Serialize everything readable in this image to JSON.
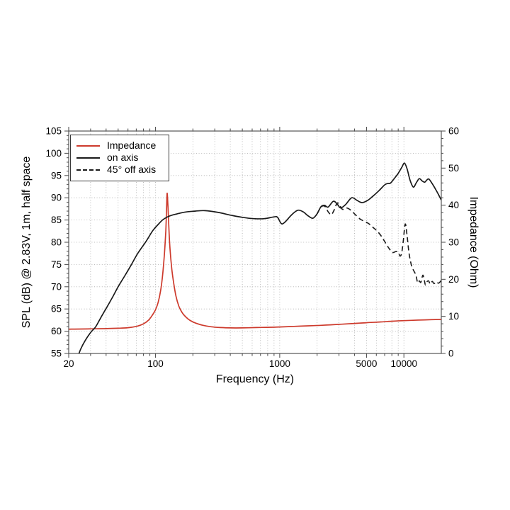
{
  "chart_data": {
    "type": "line",
    "title": "",
    "xlabel": "Frequency (Hz)",
    "ylabel_left": "SPL (dB) @ 2.83V, 1m, half space",
    "ylabel_right": "Impedance (Ohm)",
    "x_scale": "log",
    "x_range": [
      20,
      20000
    ],
    "x_ticks_labeled": [
      "20",
      "100",
      "1000",
      "5000",
      "10000"
    ],
    "x_major_ticks": [
      20,
      100,
      1000,
      5000,
      10000
    ],
    "y_left_range": [
      55,
      105
    ],
    "y_left_ticks": [
      55,
      60,
      65,
      70,
      75,
      80,
      85,
      90,
      95,
      100,
      105
    ],
    "y_left_minor_step": 1,
    "y_right_range": [
      0,
      60
    ],
    "y_right_ticks": [
      0,
      10,
      20,
      30,
      40,
      50,
      60
    ],
    "y_right_minor_step": 2,
    "grid": "dotted",
    "grid_color": "#aaaaaa",
    "frame_color": "#555555",
    "legend_position": "top-left",
    "series": [
      {
        "name": "Impedance",
        "axis": "right",
        "color": "#cd3a2c",
        "style": "solid",
        "points": [
          [
            20,
            6.55
          ],
          [
            25,
            6.6
          ],
          [
            32,
            6.65
          ],
          [
            40,
            6.7
          ],
          [
            50,
            6.8
          ],
          [
            60,
            6.95
          ],
          [
            70,
            7.3
          ],
          [
            80,
            8.0
          ],
          [
            88,
            9.0
          ],
          [
            95,
            10.5
          ],
          [
            100,
            11.8
          ],
          [
            105,
            13.8
          ],
          [
            110,
            17.0
          ],
          [
            114,
            21.0
          ],
          [
            118,
            27.0
          ],
          [
            121,
            33.0
          ],
          [
            122.5,
            38.0
          ],
          [
            124,
            43.2
          ],
          [
            126,
            39.5
          ],
          [
            128,
            34.0
          ],
          [
            131,
            28.0
          ],
          [
            135,
            23.0
          ],
          [
            140,
            19.0
          ],
          [
            146,
            15.5
          ],
          [
            154,
            12.8
          ],
          [
            164,
            11.0
          ],
          [
            176,
            9.8
          ],
          [
            190,
            8.9
          ],
          [
            210,
            8.2
          ],
          [
            240,
            7.6
          ],
          [
            280,
            7.2
          ],
          [
            330,
            7.0
          ],
          [
            400,
            6.9
          ],
          [
            500,
            6.9
          ],
          [
            650,
            7.0
          ],
          [
            800,
            7.05
          ],
          [
            1000,
            7.15
          ],
          [
            1300,
            7.3
          ],
          [
            1700,
            7.45
          ],
          [
            2200,
            7.6
          ],
          [
            3000,
            7.85
          ],
          [
            4000,
            8.1
          ],
          [
            5000,
            8.3
          ],
          [
            6500,
            8.5
          ],
          [
            8000,
            8.7
          ],
          [
            10000,
            8.85
          ],
          [
            13000,
            9.0
          ],
          [
            16000,
            9.1
          ],
          [
            20000,
            9.2
          ]
        ]
      },
      {
        "name": "on axis",
        "axis": "left",
        "color": "#1a1a1a",
        "style": "solid",
        "points": [
          [
            23.5,
            54.0
          ],
          [
            25,
            56.0
          ],
          [
            27,
            57.8
          ],
          [
            30,
            59.7
          ],
          [
            33,
            61.0
          ],
          [
            36,
            62.9
          ],
          [
            40,
            65.1
          ],
          [
            45,
            67.6
          ],
          [
            50,
            70.0
          ],
          [
            57,
            72.6
          ],
          [
            64,
            75.0
          ],
          [
            72,
            77.5
          ],
          [
            83,
            80.0
          ],
          [
            95,
            82.6
          ],
          [
            105,
            84.0
          ],
          [
            115,
            85.1
          ],
          [
            130,
            85.9
          ],
          [
            150,
            86.4
          ],
          [
            175,
            86.8
          ],
          [
            210,
            87.0
          ],
          [
            250,
            87.1
          ],
          [
            320,
            86.7
          ],
          [
            400,
            86.1
          ],
          [
            500,
            85.6
          ],
          [
            620,
            85.3
          ],
          [
            750,
            85.3
          ],
          [
            900,
            85.7
          ],
          [
            960,
            85.6
          ],
          [
            1030,
            84.2
          ],
          [
            1100,
            84.5
          ],
          [
            1250,
            86.2
          ],
          [
            1400,
            87.2
          ],
          [
            1550,
            86.8
          ],
          [
            1700,
            85.9
          ],
          [
            1850,
            85.4
          ],
          [
            2000,
            86.4
          ],
          [
            2150,
            88.0
          ],
          [
            2300,
            88.3
          ],
          [
            2450,
            87.9
          ],
          [
            2700,
            89.2
          ],
          [
            2900,
            88.6
          ],
          [
            3100,
            87.7
          ],
          [
            3400,
            88.5
          ],
          [
            3800,
            90.0
          ],
          [
            4200,
            89.4
          ],
          [
            4600,
            88.9
          ],
          [
            5100,
            89.4
          ],
          [
            5600,
            90.3
          ],
          [
            6300,
            91.6
          ],
          [
            7000,
            92.9
          ],
          [
            7400,
            93.2
          ],
          [
            7800,
            93.3
          ],
          [
            8300,
            94.2
          ],
          [
            9000,
            95.5
          ],
          [
            9600,
            96.8
          ],
          [
            10100,
            97.8
          ],
          [
            10600,
            96.5
          ],
          [
            11200,
            94.0
          ],
          [
            11900,
            92.4
          ],
          [
            12600,
            93.4
          ],
          [
            13300,
            94.3
          ],
          [
            14000,
            93.8
          ],
          [
            14700,
            93.5
          ],
          [
            15300,
            94.0
          ],
          [
            15900,
            94.2
          ],
          [
            16800,
            93.3
          ],
          [
            18000,
            91.9
          ],
          [
            19000,
            90.7
          ],
          [
            20000,
            89.5
          ]
        ]
      },
      {
        "name": "45° off axis",
        "axis": "left",
        "color": "#1a1a1a",
        "style": "dashed",
        "points": [
          [
            2000,
            86.4
          ],
          [
            2150,
            87.9
          ],
          [
            2300,
            88.1
          ],
          [
            2450,
            86.9
          ],
          [
            2600,
            86.2
          ],
          [
            2750,
            87.3
          ],
          [
            2900,
            88.8
          ],
          [
            3050,
            88.3
          ],
          [
            3200,
            87.4
          ],
          [
            3450,
            87.7
          ],
          [
            3700,
            87.3
          ],
          [
            4000,
            86.4
          ],
          [
            4400,
            85.3
          ],
          [
            4800,
            84.7
          ],
          [
            5200,
            84.2
          ],
          [
            5600,
            83.4
          ],
          [
            6100,
            82.5
          ],
          [
            6600,
            81.3
          ],
          [
            7100,
            79.9
          ],
          [
            7600,
            78.6
          ],
          [
            8100,
            77.7
          ],
          [
            8600,
            77.9
          ],
          [
            9000,
            77.8
          ],
          [
            9300,
            76.9
          ],
          [
            9600,
            77.6
          ],
          [
            9900,
            80.5
          ],
          [
            10250,
            84.1
          ],
          [
            10600,
            81.5
          ],
          [
            11000,
            77.5
          ],
          [
            11500,
            74.8
          ],
          [
            12000,
            73.6
          ],
          [
            12500,
            72.6
          ],
          [
            12900,
            70.9
          ],
          [
            13300,
            71.3
          ],
          [
            13700,
            71.0
          ],
          [
            14200,
            72.6
          ],
          [
            14600,
            71.5
          ],
          [
            14900,
            70.4
          ],
          [
            15300,
            71.1
          ],
          [
            15800,
            71.3
          ],
          [
            16300,
            70.6
          ],
          [
            16900,
            71.2
          ],
          [
            17500,
            70.7
          ],
          [
            18200,
            71.1
          ],
          [
            19000,
            70.8
          ],
          [
            20000,
            71.4
          ]
        ]
      }
    ]
  }
}
